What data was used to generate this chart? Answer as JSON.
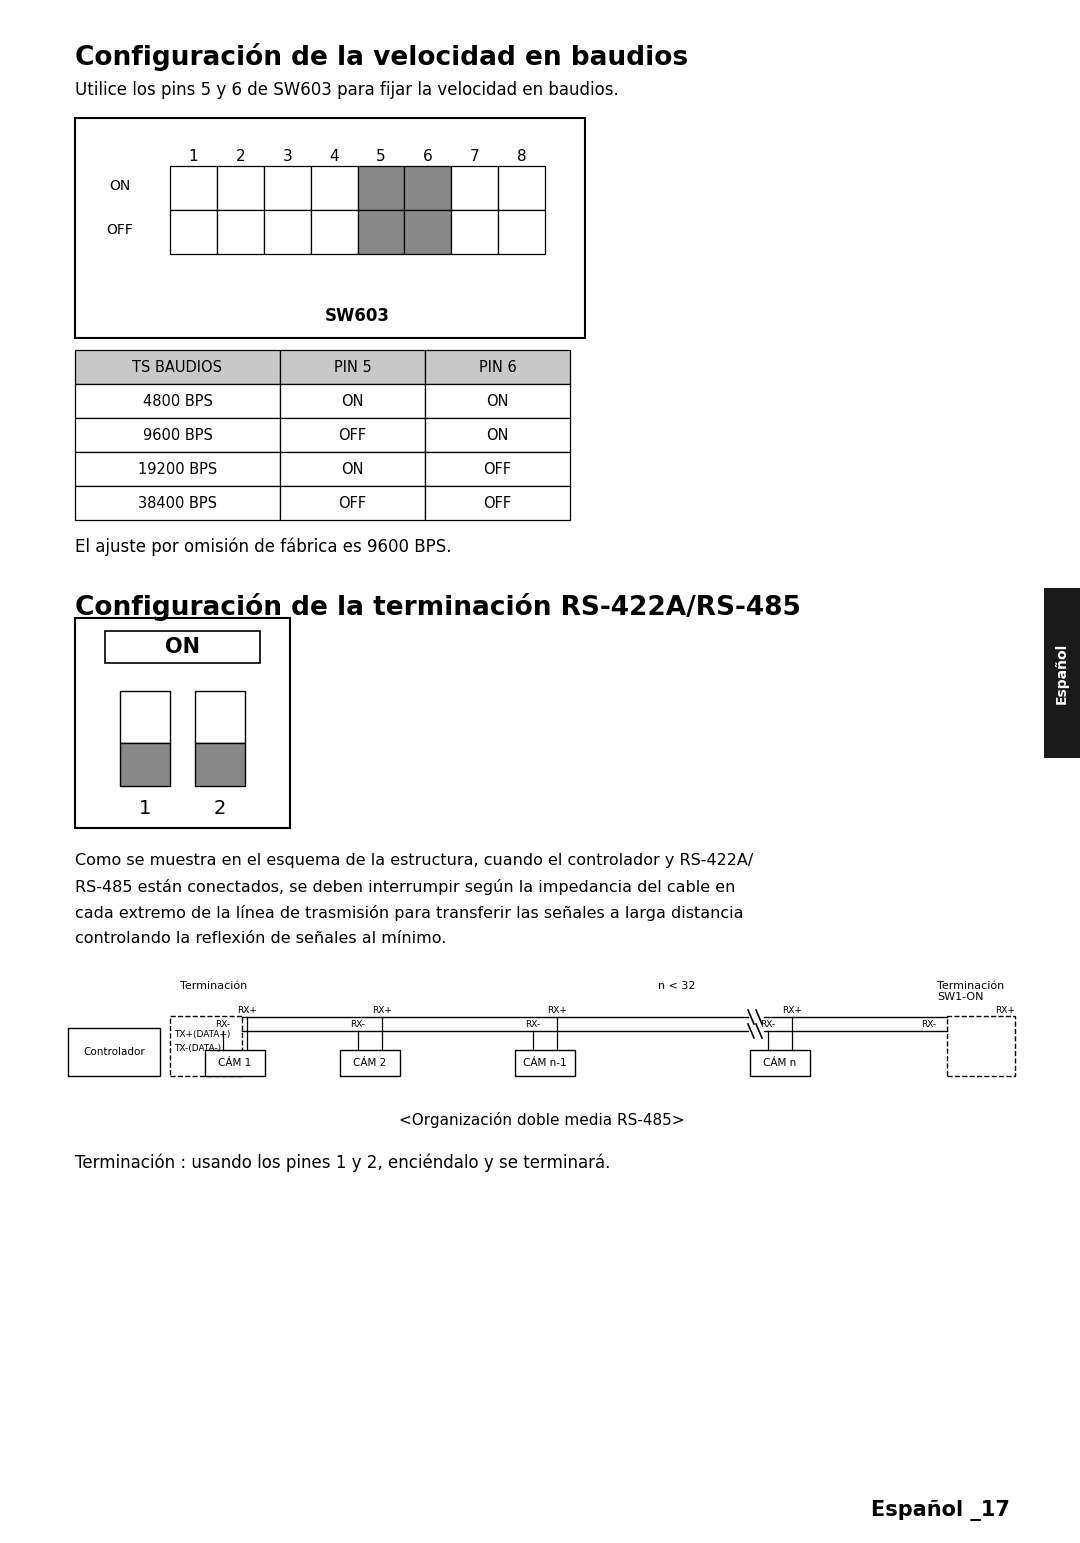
{
  "title1": "Configuración de la velocidad en baudios",
  "subtitle1": "Utilice los pins 5 y 6 de SW603 para fijar la velocidad en baudios.",
  "sw603_label": "SW603",
  "pin_numbers": [
    "1",
    "2",
    "3",
    "4",
    "5",
    "6",
    "7",
    "8"
  ],
  "on_label": "ON",
  "off_label": "OFF",
  "highlighted_cols": [
    4,
    5
  ],
  "table_header": [
    "TS BAUDIOS",
    "PIN 5",
    "PIN 6"
  ],
  "table_rows": [
    [
      "4800 BPS",
      "ON",
      "ON"
    ],
    [
      "9600 BPS",
      "OFF",
      "ON"
    ],
    [
      "19200 BPS",
      "ON",
      "OFF"
    ],
    [
      "38400 BPS",
      "OFF",
      "OFF"
    ]
  ],
  "note1": "El ajuste por omisión de fábrica es 9600 BPS.",
  "title2": "Configuración de la terminación RS-422A/RS-485",
  "body_text1": "Como se muestra en el esquema de la estructura, cuando el controlador y RS-422A/",
  "body_text2": "RS-485 están conectados, se deben interrumpir según la impedancia del cable en",
  "body_text3": "cada extremo de la línea de trasmisión para transferir las señales a larga distancia",
  "body_text4": "controlando la reflexión de señales al mínimo.",
  "note2": "<Organización doble media RS-485>",
  "footer": "Terminación : usando los pines 1 y 2, enciéndalo y se terminará.",
  "page_label": "Español _17",
  "espanol_tab": "Español",
  "bg_color": "#ffffff",
  "header_gray": "#c8c8c8",
  "switch_highlight": "#888888",
  "black": "#000000"
}
